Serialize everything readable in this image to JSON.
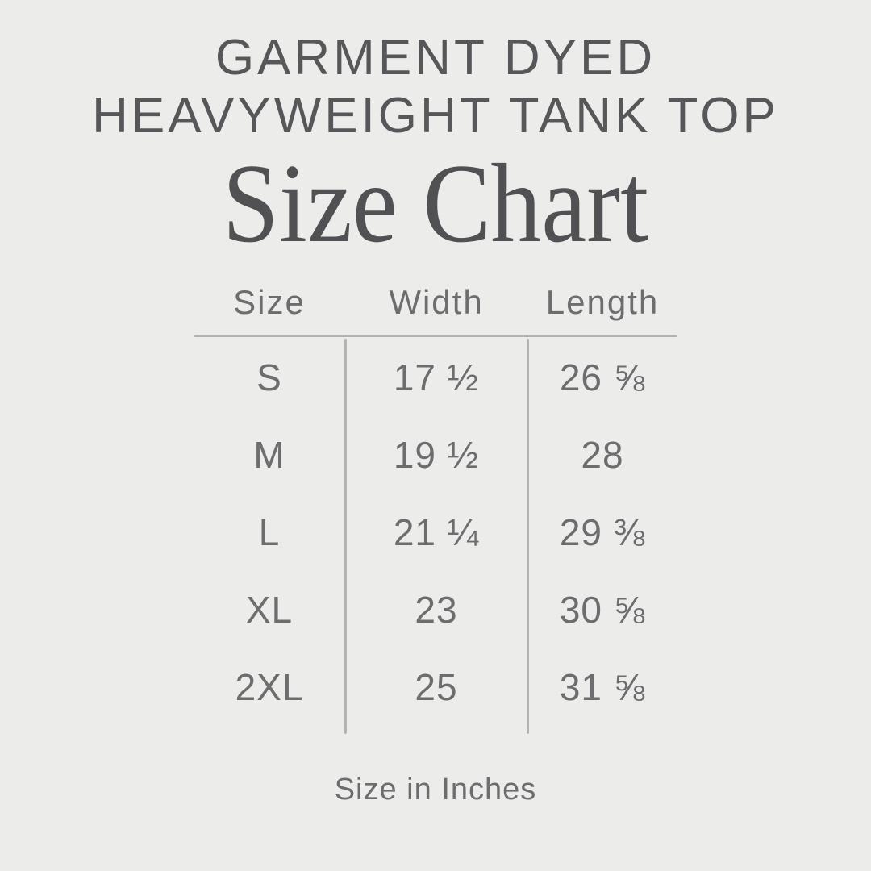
{
  "page": {
    "title_line1": "GARMENT DYED",
    "title_line2": "HEAVYWEIGHT TANK TOP",
    "subtitle": "Size Chart",
    "footer_note": "Size in Inches"
  },
  "colors": {
    "background": "#ECECEA",
    "heading_text": "#57575A",
    "subtitle_text": "#515154",
    "table_text": "#6D6D6F",
    "rule": "#B3B3B3"
  },
  "chart_data": {
    "type": "table",
    "title": "Garment Dyed Heavyweight Tank Top — Size Chart",
    "units": "inches",
    "columns": [
      "Size",
      "Width",
      "Length"
    ],
    "rows": [
      [
        "S",
        "17 ½",
        "26 ⅝"
      ],
      [
        "M",
        "19 ½",
        "28"
      ],
      [
        "L",
        "21 ¼",
        "29 ⅜"
      ],
      [
        "XL",
        "23",
        "30 ⅝"
      ],
      [
        "2XL",
        "25",
        "31 ⅝"
      ]
    ]
  }
}
